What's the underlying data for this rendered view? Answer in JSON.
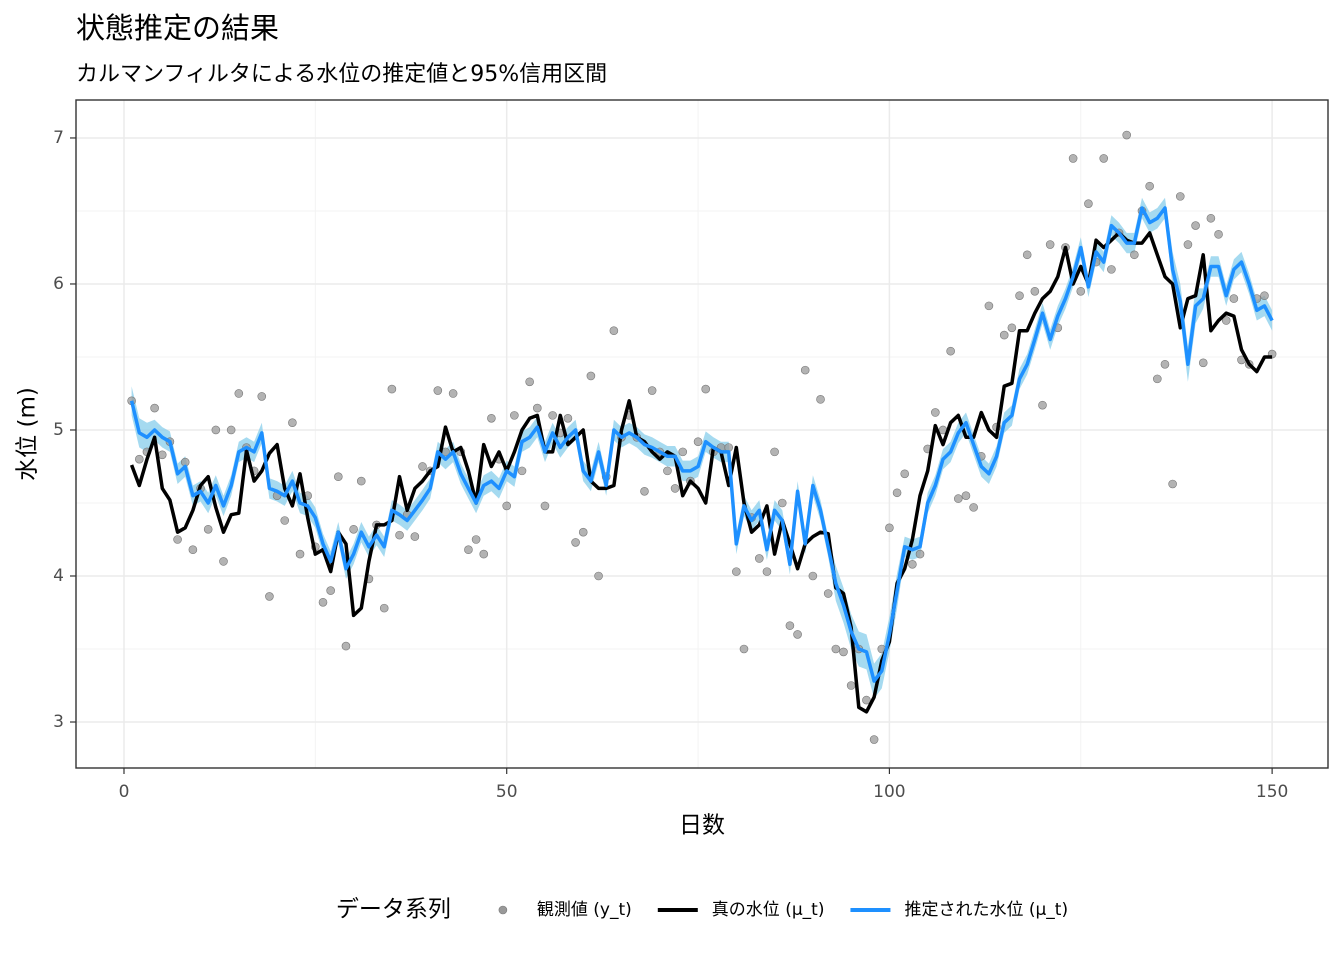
{
  "chart_data": {
    "type": "line",
    "title": "状態推定の結果",
    "subtitle": "カルマンフィルタによる水位の推定値と95%信用区間",
    "x_label": "日数",
    "y_label": "水位 (m)",
    "legend_title": "データ系列",
    "legend": "bottom",
    "grid": true,
    "xlim": [
      -6.27,
      157.3
    ],
    "ylim": [
      2.685,
      7.26
    ],
    "xticks": [
      0,
      50,
      100,
      150
    ],
    "yticks": [
      3,
      4,
      5,
      6,
      7
    ],
    "xminor": [
      25,
      75,
      125
    ],
    "yminor": [
      3.5,
      4.5,
      5.5,
      6.5
    ],
    "x": [
      1,
      2,
      3,
      4,
      5,
      6,
      7,
      8,
      9,
      10,
      11,
      12,
      13,
      14,
      15,
      16,
      17,
      18,
      19,
      20,
      21,
      22,
      23,
      24,
      25,
      26,
      27,
      28,
      29,
      30,
      31,
      32,
      33,
      34,
      35,
      36,
      37,
      38,
      39,
      40,
      41,
      42,
      43,
      44,
      45,
      46,
      47,
      48,
      49,
      50,
      51,
      52,
      53,
      54,
      55,
      56,
      57,
      58,
      59,
      60,
      61,
      62,
      63,
      64,
      65,
      66,
      67,
      68,
      69,
      70,
      71,
      72,
      73,
      74,
      75,
      76,
      77,
      78,
      79,
      80,
      81,
      82,
      83,
      84,
      85,
      86,
      87,
      88,
      89,
      90,
      91,
      92,
      93,
      94,
      95,
      96,
      97,
      98,
      99,
      100,
      101,
      102,
      103,
      104,
      105,
      106,
      107,
      108,
      109,
      110,
      111,
      112,
      113,
      114,
      115,
      116,
      117,
      118,
      119,
      120,
      121,
      122,
      123,
      124,
      125,
      126,
      127,
      128,
      129,
      130,
      131,
      132,
      133,
      134,
      135,
      136,
      137,
      138,
      139,
      140,
      141,
      142,
      143,
      144,
      145,
      146,
      147,
      148,
      149,
      150
    ],
    "band": {
      "color": "#87ceeb",
      "lower": [
        5.1,
        4.88,
        4.85,
        4.93,
        4.88,
        4.85,
        4.63,
        4.68,
        4.48,
        4.51,
        4.43,
        4.55,
        4.41,
        4.55,
        4.78,
        4.81,
        4.78,
        4.91,
        4.53,
        4.51,
        4.48,
        4.58,
        4.43,
        4.41,
        4.33,
        4.15,
        4.03,
        4.23,
        3.98,
        4.08,
        4.23,
        4.13,
        4.21,
        4.13,
        4.38,
        4.35,
        4.31,
        4.38,
        4.45,
        4.53,
        4.78,
        4.73,
        4.78,
        4.63,
        4.53,
        4.43,
        4.55,
        4.58,
        4.53,
        4.65,
        4.61,
        4.85,
        4.88,
        4.95,
        4.78,
        4.91,
        4.81,
        4.88,
        4.93,
        4.65,
        4.58,
        4.78,
        4.55,
        4.93,
        4.88,
        4.91,
        4.88,
        4.83,
        4.81,
        4.78,
        4.75,
        4.75,
        4.65,
        4.65,
        4.68,
        4.85,
        4.81,
        4.78,
        4.78,
        4.15,
        4.41,
        4.31,
        4.38,
        4.11,
        4.38,
        4.31,
        4.01,
        4.51,
        4.15,
        4.55,
        4.38,
        4.13,
        3.83,
        3.68,
        3.5,
        3.38,
        3.36,
        3.16,
        3.23,
        3.48,
        3.78,
        4.13,
        4.11,
        4.13,
        4.43,
        4.55,
        4.73,
        4.78,
        4.91,
        4.98,
        4.83,
        4.68,
        4.63,
        4.75,
        4.98,
        5.03,
        5.28,
        5.38,
        5.55,
        5.73,
        5.55,
        5.71,
        5.83,
        5.98,
        6.18,
        5.91,
        6.15,
        6.08,
        6.33,
        6.28,
        6.21,
        6.21,
        6.45,
        6.35,
        6.38,
        6.45,
        5.98,
        5.76,
        5.33,
        5.73,
        5.83,
        6.05,
        6.05,
        5.85,
        6.03,
        6.08,
        5.93,
        5.75,
        5.78,
        5.68
      ],
      "upper": [
        5.3,
        5.08,
        5.05,
        5.07,
        5.02,
        4.99,
        4.77,
        4.82,
        4.62,
        4.65,
        4.57,
        4.69,
        4.55,
        4.69,
        4.92,
        4.95,
        4.92,
        5.05,
        4.67,
        4.65,
        4.62,
        4.72,
        4.57,
        4.55,
        4.47,
        4.29,
        4.17,
        4.37,
        4.12,
        4.22,
        4.37,
        4.27,
        4.35,
        4.27,
        4.52,
        4.49,
        4.45,
        4.52,
        4.59,
        4.67,
        4.92,
        4.87,
        4.92,
        4.77,
        4.67,
        4.57,
        4.69,
        4.72,
        4.67,
        4.79,
        4.75,
        4.99,
        5.02,
        5.09,
        4.92,
        5.05,
        4.95,
        5.02,
        5.07,
        4.79,
        4.72,
        4.92,
        4.69,
        5.07,
        5.02,
        5.05,
        5.02,
        4.97,
        4.95,
        4.92,
        4.89,
        4.89,
        4.79,
        4.79,
        4.82,
        4.99,
        4.95,
        4.92,
        4.92,
        4.29,
        4.55,
        4.45,
        4.52,
        4.25,
        4.52,
        4.45,
        4.15,
        4.65,
        4.29,
        4.69,
        4.52,
        4.27,
        4.07,
        3.92,
        3.74,
        3.62,
        3.6,
        3.4,
        3.47,
        3.72,
        4.02,
        4.27,
        4.25,
        4.27,
        4.57,
        4.69,
        4.87,
        4.92,
        5.05,
        5.12,
        4.97,
        4.82,
        4.77,
        4.89,
        5.12,
        5.17,
        5.42,
        5.52,
        5.69,
        5.87,
        5.69,
        5.85,
        5.97,
        6.12,
        6.32,
        6.05,
        6.29,
        6.22,
        6.47,
        6.42,
        6.35,
        6.35,
        6.59,
        6.49,
        6.52,
        6.59,
        6.22,
        6.0,
        5.57,
        5.97,
        5.97,
        6.19,
        6.19,
        5.99,
        6.17,
        6.22,
        6.07,
        5.89,
        5.92,
        5.82
      ]
    },
    "series": [
      {
        "name": "観測値 (y_t)",
        "type": "scatter",
        "color": "#999999",
        "values": [
          5.2,
          4.8,
          4.85,
          5.15,
          4.83,
          4.92,
          4.25,
          4.78,
          4.18,
          4.6,
          4.32,
          5.0,
          4.1,
          5.0,
          5.25,
          4.88,
          4.72,
          5.23,
          3.86,
          4.55,
          4.38,
          5.05,
          4.15,
          4.55,
          4.2,
          3.82,
          3.9,
          4.68,
          3.52,
          4.32,
          4.65,
          3.98,
          4.35,
          3.78,
          5.28,
          4.28,
          4.42,
          4.27,
          4.75,
          4.72,
          5.27,
          4.85,
          5.25,
          4.85,
          4.18,
          4.25,
          4.15,
          5.08,
          4.8,
          4.48,
          5.1,
          4.72,
          5.33,
          5.15,
          4.48,
          5.1,
          4.98,
          5.08,
          4.23,
          4.3,
          5.37,
          4.0,
          4.68,
          5.68,
          4.95,
          5.1,
          4.95,
          4.58,
          5.27,
          4.85,
          4.72,
          4.6,
          4.85,
          4.65,
          4.92,
          5.28,
          4.85,
          4.88,
          4.88,
          4.03,
          3.5,
          4.4,
          4.12,
          4.03,
          4.85,
          4.5,
          3.66,
          3.6,
          5.41,
          4.0,
          5.21,
          3.88,
          3.5,
          3.48,
          3.25,
          3.5,
          3.15,
          2.88,
          3.5,
          4.33,
          4.57,
          4.7,
          4.08,
          4.15,
          4.87,
          5.12,
          5.0,
          5.54,
          4.53,
          4.55,
          4.47,
          4.82,
          5.85,
          5.02,
          5.65,
          5.7,
          5.92,
          6.2,
          5.95,
          5.17,
          6.27,
          5.7,
          6.25,
          6.86,
          5.95,
          6.55,
          6.15,
          6.86,
          6.1,
          6.35,
          7.02,
          6.2,
          6.5,
          6.67,
          5.35,
          5.45,
          4.63,
          6.6,
          6.27,
          6.4,
          5.46,
          6.45,
          6.34,
          5.75,
          5.9,
          5.48,
          5.45,
          5.9,
          5.92,
          5.52
        ]
      },
      {
        "name": "真の水位 (μ_t)",
        "type": "line",
        "color": "#000000",
        "values": [
          4.76,
          4.62,
          4.8,
          4.95,
          4.6,
          4.52,
          4.3,
          4.33,
          4.45,
          4.62,
          4.68,
          4.47,
          4.3,
          4.42,
          4.43,
          4.86,
          4.65,
          4.72,
          4.84,
          4.9,
          4.6,
          4.48,
          4.7,
          4.4,
          4.15,
          4.18,
          4.03,
          4.3,
          4.22,
          3.73,
          3.78,
          4.1,
          4.35,
          4.35,
          4.38,
          4.68,
          4.45,
          4.6,
          4.65,
          4.72,
          4.75,
          5.02,
          4.85,
          4.88,
          4.72,
          4.5,
          4.9,
          4.75,
          4.85,
          4.72,
          4.85,
          5.0,
          5.08,
          5.1,
          4.85,
          4.85,
          5.1,
          4.9,
          4.95,
          5.0,
          4.65,
          4.6,
          4.6,
          4.62,
          5.0,
          5.2,
          4.95,
          4.92,
          4.85,
          4.8,
          4.85,
          4.82,
          4.55,
          4.65,
          4.6,
          4.5,
          4.88,
          4.85,
          4.62,
          4.88,
          4.5,
          4.3,
          4.35,
          4.48,
          4.15,
          4.38,
          4.22,
          4.05,
          4.22,
          4.27,
          4.3,
          4.29,
          3.92,
          3.88,
          3.65,
          3.1,
          3.07,
          3.17,
          3.42,
          3.55,
          3.95,
          4.05,
          4.25,
          4.55,
          4.72,
          5.03,
          4.9,
          5.05,
          5.1,
          4.95,
          4.95,
          5.12,
          5.0,
          4.95,
          5.3,
          5.32,
          5.68,
          5.68,
          5.8,
          5.9,
          5.95,
          6.05,
          6.25,
          6.0,
          6.12,
          6.0,
          6.3,
          6.25,
          6.3,
          6.35,
          6.3,
          6.28,
          6.28,
          6.35,
          6.2,
          6.05,
          6.0,
          5.7,
          5.9,
          5.92,
          6.2,
          5.68,
          5.75,
          5.8,
          5.78,
          5.55,
          5.45,
          5.4,
          5.5,
          5.5
        ]
      },
      {
        "name": "推定された水位 (μ_t)",
        "type": "line",
        "color": "#1e90ff",
        "values": [
          5.2,
          4.98,
          4.95,
          5.0,
          4.95,
          4.92,
          4.7,
          4.75,
          4.55,
          4.58,
          4.5,
          4.62,
          4.48,
          4.62,
          4.85,
          4.88,
          4.85,
          4.98,
          4.6,
          4.58,
          4.55,
          4.65,
          4.5,
          4.48,
          4.4,
          4.22,
          4.1,
          4.3,
          4.05,
          4.15,
          4.3,
          4.2,
          4.28,
          4.2,
          4.45,
          4.42,
          4.38,
          4.45,
          4.52,
          4.6,
          4.85,
          4.8,
          4.85,
          4.7,
          4.6,
          4.5,
          4.62,
          4.65,
          4.6,
          4.72,
          4.68,
          4.92,
          4.95,
          5.02,
          4.85,
          4.98,
          4.88,
          4.95,
          5.0,
          4.72,
          4.65,
          4.85,
          4.62,
          5.0,
          4.95,
          4.98,
          4.95,
          4.9,
          4.88,
          4.85,
          4.82,
          4.82,
          4.72,
          4.72,
          4.75,
          4.92,
          4.88,
          4.85,
          4.85,
          4.22,
          4.48,
          4.38,
          4.45,
          4.18,
          4.45,
          4.38,
          4.08,
          4.58,
          4.22,
          4.62,
          4.45,
          4.2,
          3.95,
          3.8,
          3.62,
          3.5,
          3.48,
          3.28,
          3.35,
          3.6,
          3.9,
          4.2,
          4.18,
          4.2,
          4.5,
          4.62,
          4.8,
          4.85,
          4.98,
          5.05,
          4.9,
          4.75,
          4.7,
          4.82,
          5.05,
          5.1,
          5.35,
          5.45,
          5.62,
          5.8,
          5.62,
          5.78,
          5.9,
          6.05,
          6.25,
          5.98,
          6.22,
          6.15,
          6.4,
          6.35,
          6.28,
          6.28,
          6.52,
          6.42,
          6.45,
          6.52,
          6.1,
          5.88,
          5.45,
          5.85,
          5.9,
          6.12,
          6.12,
          5.92,
          6.1,
          6.15,
          6.0,
          5.82,
          5.85,
          5.75
        ]
      }
    ]
  }
}
